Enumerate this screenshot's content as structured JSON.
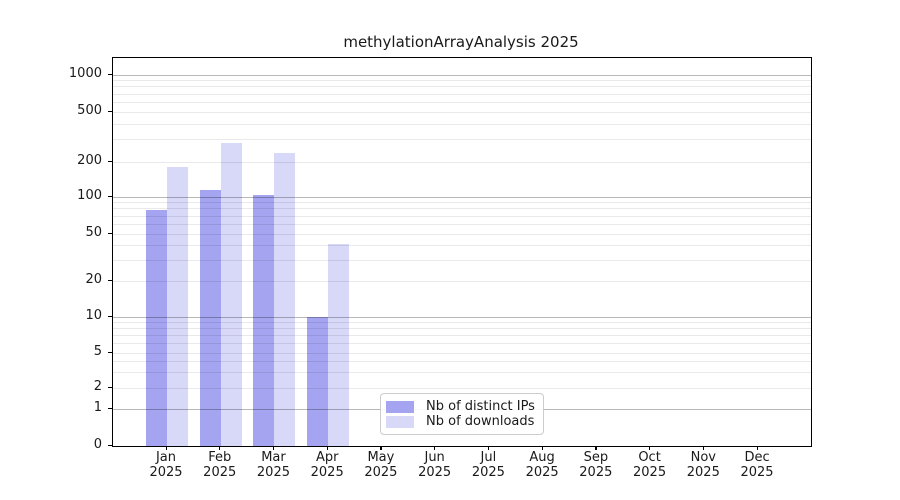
{
  "title": "methylationArrayAnalysis 2025",
  "chart_data": {
    "type": "bar",
    "title": "methylationArrayAnalysis 2025",
    "subtitle": "",
    "xlabel": "",
    "ylabel": "",
    "yscale": "symlog",
    "ylim": [
      0,
      1000
    ],
    "grid": true,
    "legend_position": "lower center",
    "categories": [
      "Jan",
      "Feb",
      "Mar",
      "Apr",
      "May",
      "Jun",
      "Jul",
      "Aug",
      "Sep",
      "Oct",
      "Nov",
      "Dec"
    ],
    "category_year": "2025",
    "y_ticks": [
      0,
      1,
      2,
      5,
      10,
      20,
      50,
      100,
      200,
      500,
      1000
    ],
    "major_grid_values": [
      1,
      10,
      100,
      1000
    ],
    "minor_grid_values": [
      2,
      3,
      4,
      5,
      6,
      7,
      8,
      9,
      20,
      30,
      40,
      50,
      60,
      70,
      80,
      90,
      200,
      300,
      400,
      500,
      600,
      700,
      800,
      900
    ],
    "series": [
      {
        "name": "Nb of distinct IPs",
        "color": "#a4a4f0",
        "values": [
          79,
          115,
          104,
          10,
          0,
          0,
          0,
          0,
          0,
          0,
          0,
          0
        ]
      },
      {
        "name": "Nb of downloads",
        "color": "#d8d8f9",
        "values": [
          180,
          285,
          235,
          41,
          0,
          0,
          0,
          0,
          0,
          0,
          0,
          0
        ]
      }
    ]
  }
}
